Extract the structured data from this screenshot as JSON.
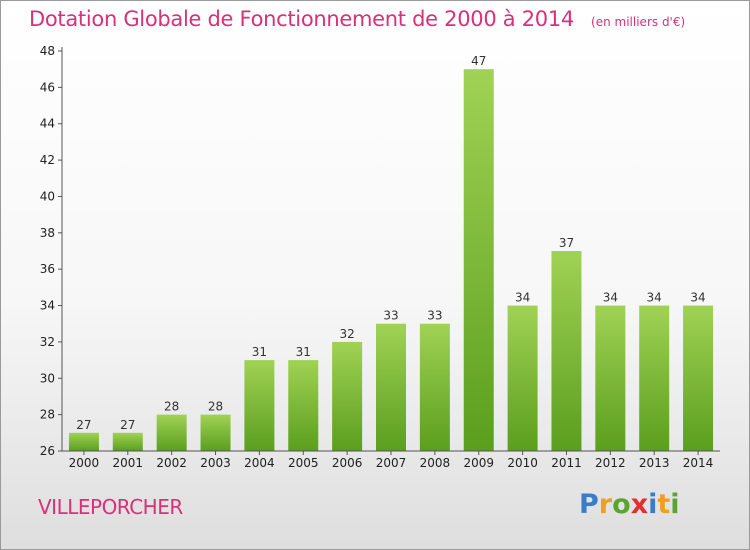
{
  "title": "Dotation Globale de Fonctionnement de 2000 à 2014",
  "subtitle": "(en milliers d'€)",
  "commune": "VILLEPORCHER",
  "logo": {
    "letters": [
      "P",
      "r",
      "o",
      "x",
      "i",
      "t",
      "i"
    ],
    "colors": [
      "#3a7cc8",
      "#f0a020",
      "#5aa532",
      "#e03030",
      "#3a7cc8",
      "#f0a020",
      "#5aa532"
    ]
  },
  "colors": {
    "bar_top": "#a0d255",
    "bar_bottom": "#5b9e1e",
    "title": "#d9307a"
  },
  "chart_data": {
    "type": "bar",
    "title": "Dotation Globale de Fonctionnement de 2000 à 2014",
    "subtitle": "(en milliers d'€)",
    "categories": [
      "2000",
      "2001",
      "2002",
      "2003",
      "2004",
      "2005",
      "2006",
      "2007",
      "2008",
      "2009",
      "2010",
      "2011",
      "2012",
      "2013",
      "2014"
    ],
    "values": [
      27,
      27,
      28,
      28,
      31,
      31,
      32,
      33,
      33,
      47,
      34,
      37,
      34,
      34,
      34
    ],
    "value_labels": [
      "27",
      "27",
      "28",
      "28",
      "31",
      "31",
      "32",
      "33",
      "33",
      "47",
      "34",
      "37",
      "34",
      "34",
      "34"
    ],
    "ylim": [
      26,
      48
    ],
    "yticks": [
      "26",
      "28",
      "30",
      "32",
      "34",
      "36",
      "38",
      "40",
      "42",
      "44",
      "46",
      "48"
    ],
    "grid": false,
    "legend": false
  }
}
